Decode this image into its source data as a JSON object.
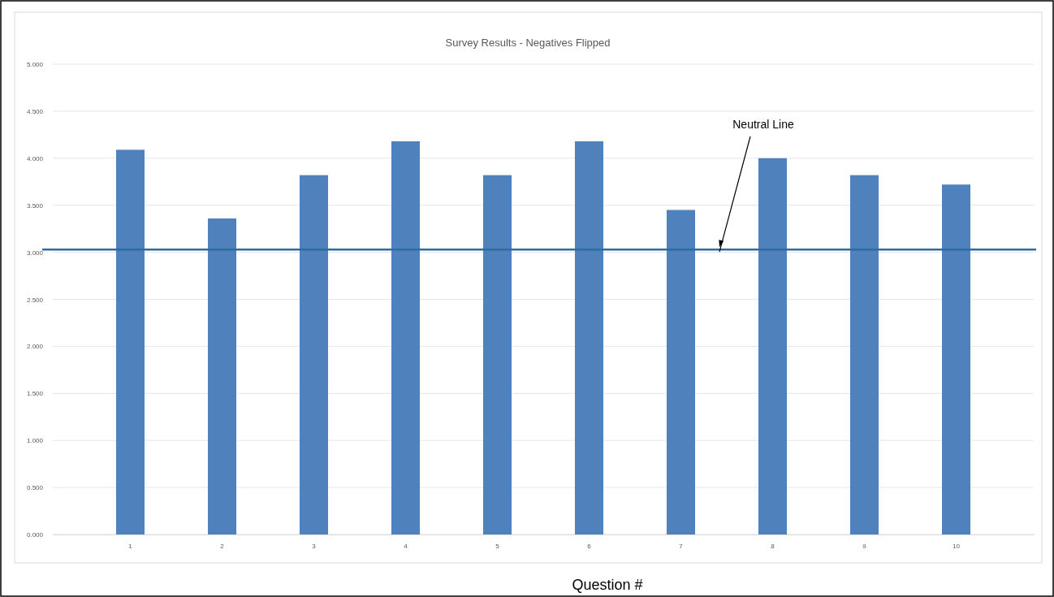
{
  "chart_data": {
    "type": "bar",
    "title": "Survey Results - Negatives Flipped",
    "xlabel": "Question #",
    "categories": [
      "1",
      "2",
      "3",
      "4",
      "5",
      "6",
      "7",
      "8",
      "9",
      "10"
    ],
    "values": [
      4.09,
      3.36,
      3.82,
      4.18,
      3.82,
      4.18,
      3.45,
      4.0,
      3.82,
      3.72
    ],
    "color": "#4f81bd",
    "ylim": [
      0,
      5
    ],
    "yticks": [
      {
        "value": 0,
        "label": "0.000"
      },
      {
        "value": 0.5,
        "label": "0.500"
      },
      {
        "value": 1,
        "label": "1.000"
      },
      {
        "value": 1.5,
        "label": "1.500"
      },
      {
        "value": 2,
        "label": "2.000"
      },
      {
        "value": 2.5,
        "label": "2.500"
      },
      {
        "value": 3,
        "label": "3.000"
      },
      {
        "value": 3.5,
        "label": "3.500"
      },
      {
        "value": 4,
        "label": "4.000"
      },
      {
        "value": 4.5,
        "label": "4.500"
      },
      {
        "value": 5,
        "label": "5.000"
      }
    ],
    "grid": "y",
    "ref_lines": [
      {
        "axis": "y",
        "value": 3.03,
        "label": "Neutral Line",
        "color": "#2e6da4"
      }
    ]
  }
}
